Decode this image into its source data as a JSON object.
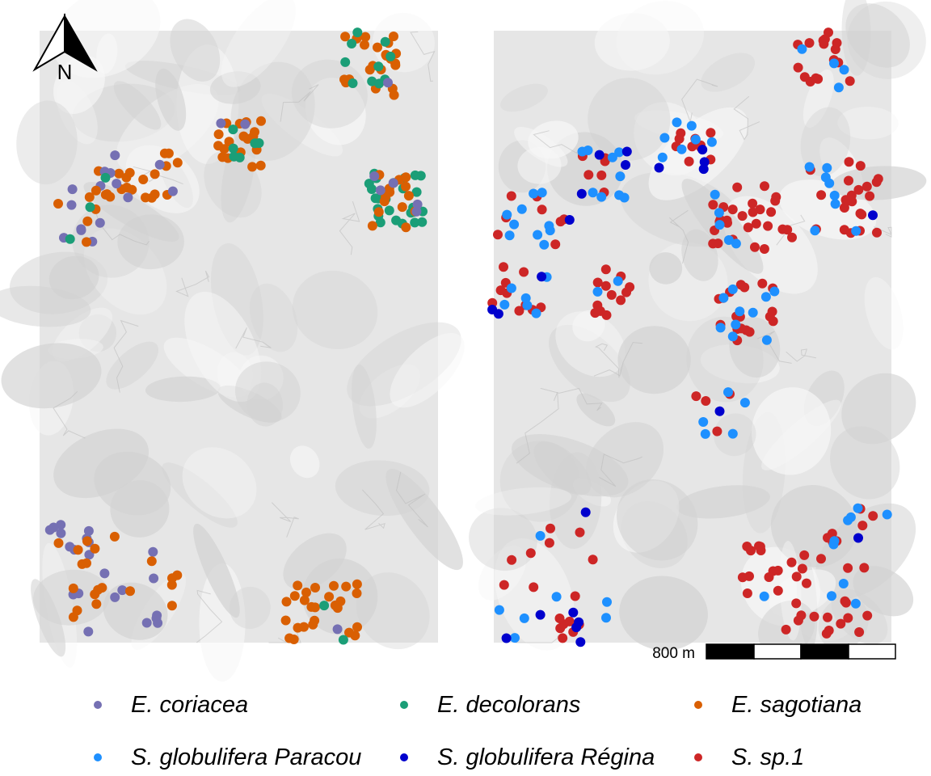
{
  "map": {
    "north_label": "N",
    "scale_label": "800 m",
    "basemap": "hillshade relief (light grey)"
  },
  "colors": {
    "E_coriacea": "#7570b3",
    "E_decolorans": "#1b9e77",
    "E_sagotiana": "#d95f02",
    "S_globulifera_Paracou": "#1e90ff",
    "S_globulifera_Regina": "#0000cd",
    "S_sp1": "#cd2626"
  },
  "legend": [
    {
      "key": "E_coriacea",
      "label": "E. coriacea",
      "color": "#7570b3"
    },
    {
      "key": "E_decolorans",
      "label": "E. decolorans",
      "color": "#1b9e77"
    },
    {
      "key": "E_sagotiana",
      "label": "E. sagotiana",
      "color": "#d95f02"
    },
    {
      "key": "S_globulifera_Paracou",
      "label": "S. globulifera Paracou",
      "color": "#1e90ff"
    },
    {
      "key": "S_globulifera_Regina",
      "label": "S. globulifera Régina",
      "color": "#0000cd"
    },
    {
      "key": "S_sp1",
      "label": "S. sp.1",
      "color": "#cd2626"
    }
  ]
}
